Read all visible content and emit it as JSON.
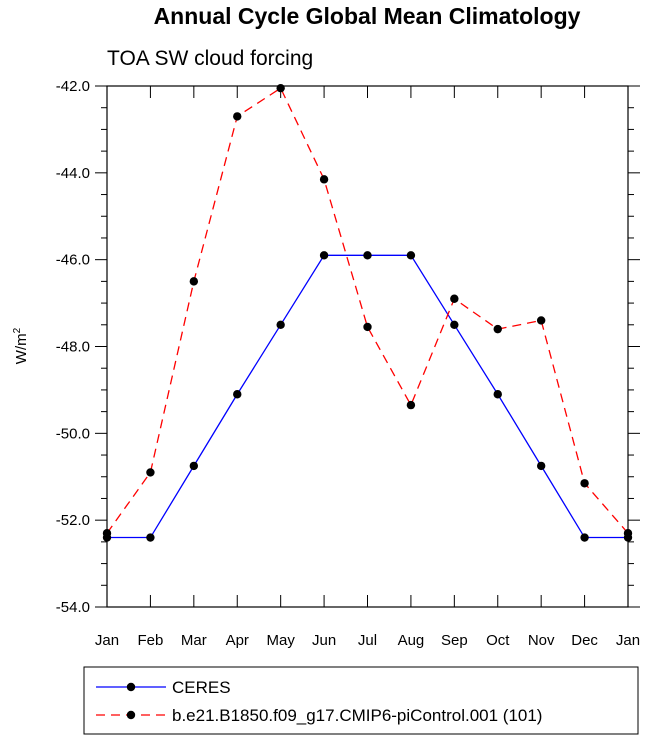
{
  "chart_data": {
    "type": "line",
    "title": "Annual Cycle Global Mean Climatology",
    "subtitle": "TOA SW cloud forcing",
    "ylabel": "W/m",
    "ylabel_superscript": "2",
    "xlabel": "",
    "categories": [
      "Jan",
      "Feb",
      "Mar",
      "Apr",
      "May",
      "Jun",
      "Jul",
      "Aug",
      "Sep",
      "Oct",
      "Nov",
      "Dec",
      "Jan"
    ],
    "ylim": [
      -54.0,
      -42.0
    ],
    "yticks": [
      -54.0,
      -52.0,
      -50.0,
      -48.0,
      -46.0,
      -44.0,
      -42.0
    ],
    "ytick_labels": [
      "-54.0",
      "-52.0",
      "-50.0",
      "-48.0",
      "-46.0",
      "-44.0",
      "-42.0"
    ],
    "grid": false,
    "legend_position": "bottom",
    "series": [
      {
        "name": "CERES",
        "color": "#0000ff",
        "linestyle": "solid",
        "marker": "filled-circle",
        "values": [
          -52.4,
          -52.4,
          -50.75,
          -49.1,
          -47.5,
          -45.9,
          -45.9,
          -45.9,
          -47.5,
          -49.1,
          -50.75,
          -52.4,
          -52.4
        ]
      },
      {
        "name": "b.e21.B1850.f09_g17.CMIP6-piControl.001 (101)",
        "color": "#ff0000",
        "linestyle": "dashed",
        "marker": "filled-circle",
        "values": [
          -52.3,
          -50.9,
          -46.5,
          -42.7,
          -42.05,
          -44.15,
          -47.55,
          -49.35,
          -46.9,
          -47.6,
          -47.4,
          -51.15,
          -52.3
        ]
      }
    ]
  }
}
